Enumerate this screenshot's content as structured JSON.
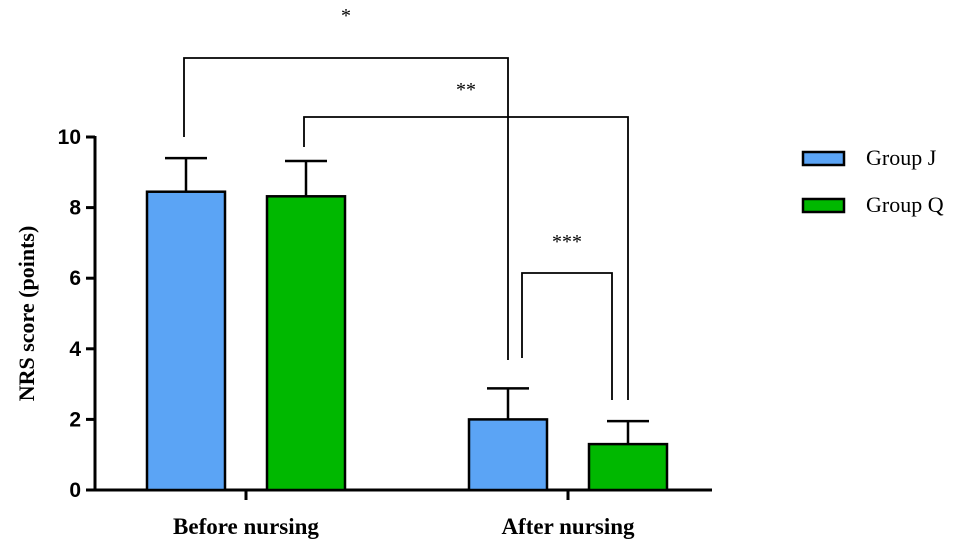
{
  "chart_data": {
    "type": "bar",
    "categories": [
      "Before nursing",
      "After nursing"
    ],
    "series": [
      {
        "name": "Group J",
        "color": "#5ba4f5",
        "values": [
          8.45,
          2.0
        ],
        "errors": [
          0.95,
          0.88
        ]
      },
      {
        "name": "Group Q",
        "color": "#00b800",
        "values": [
          8.32,
          1.3
        ],
        "errors": [
          1.0,
          0.65
        ]
      }
    ],
    "ylabel": "NRS score (points)",
    "xlabel": "",
    "ylim": [
      0,
      10
    ],
    "yticks": [
      "0",
      "2",
      "4",
      "6",
      "8",
      "10"
    ],
    "legend_position": "right",
    "grid": false,
    "significance": [
      {
        "label": "*",
        "from": "Group J / Before nursing",
        "to": "Group J / After nursing"
      },
      {
        "label": "**",
        "from": "Group Q / Before nursing",
        "to": "Group Q / After nursing"
      },
      {
        "label": "***",
        "from": "Group J / After nursing",
        "to": "Group Q / After nursing"
      }
    ]
  }
}
